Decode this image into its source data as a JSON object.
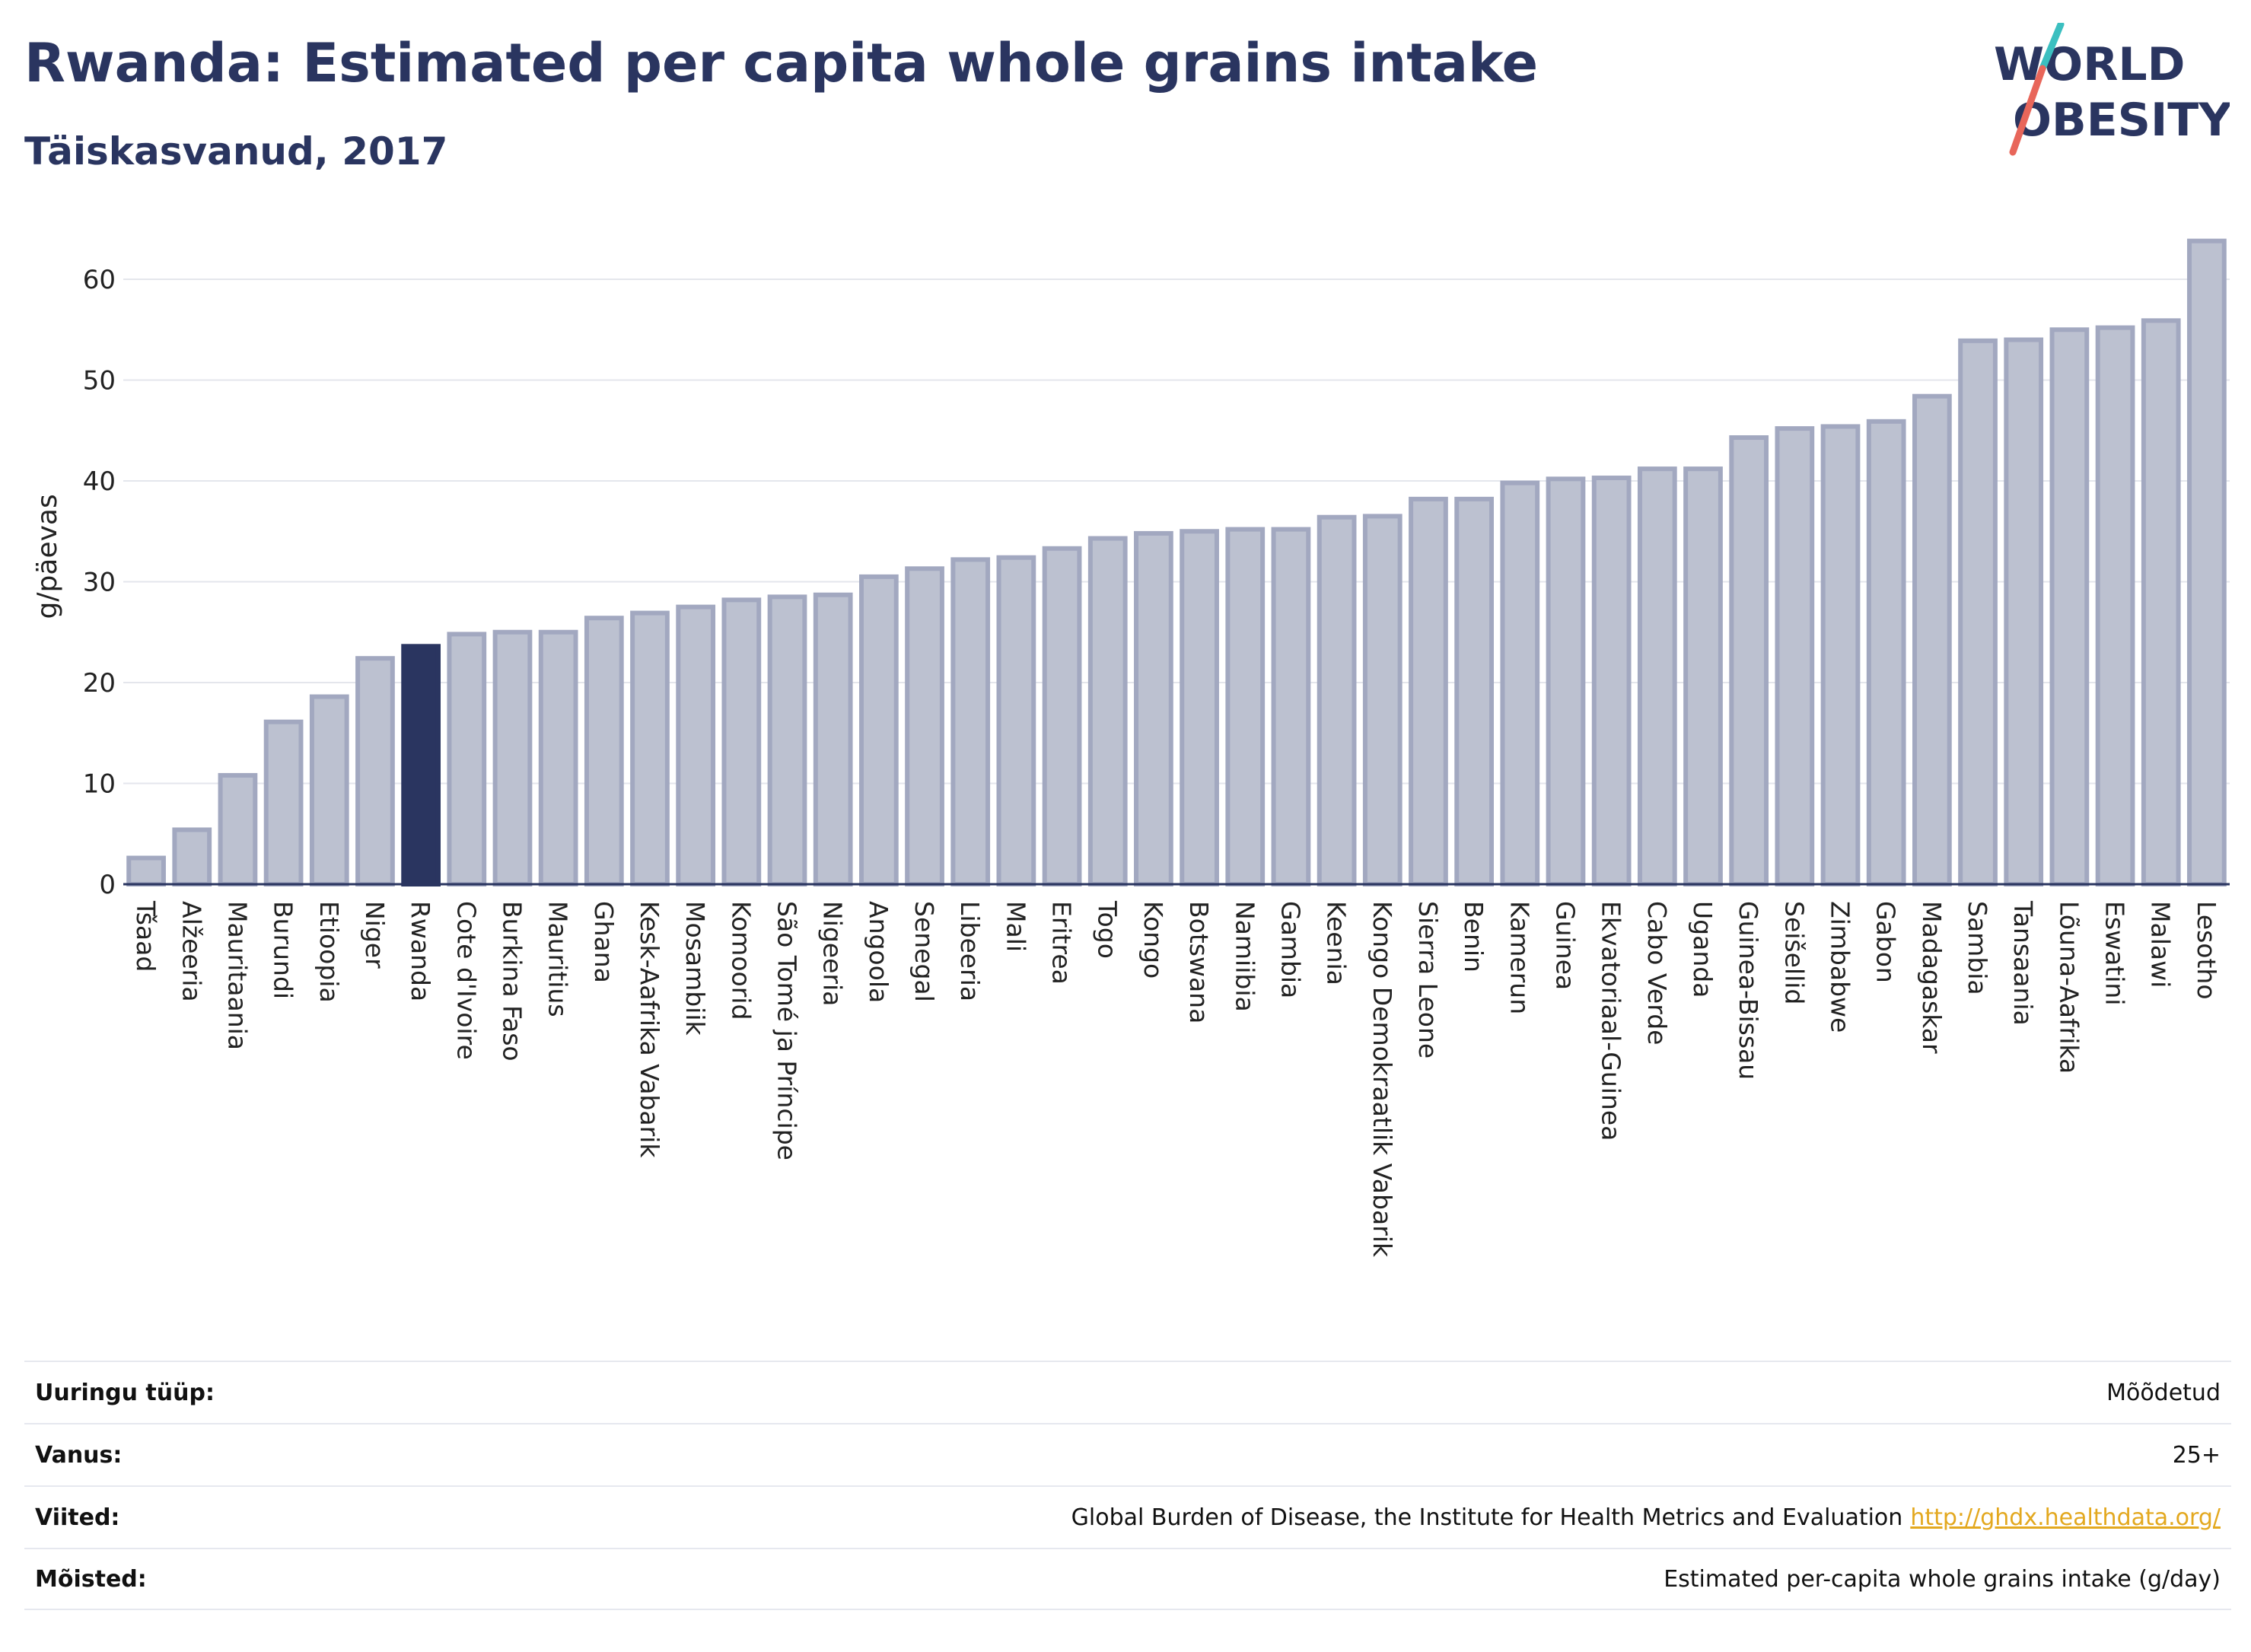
{
  "title": "Rwanda: Estimated per capita whole grains intake",
  "subtitle": "Täiskasvanud, 2017",
  "logo": {
    "line1": "WORLD",
    "line2": "OBESITY"
  },
  "colors": {
    "highlight": "#2a3560",
    "bar_fill": "#bcc1d0",
    "bar_stroke": "#a2a8c0",
    "accent_teal": "#3bbfc0",
    "accent_red": "#e8665a"
  },
  "chart_data": {
    "type": "bar",
    "ylabel": "g/päevas",
    "ylim": [
      0,
      65
    ],
    "yticks": [
      0,
      10,
      20,
      30,
      40,
      50,
      60
    ],
    "highlight": "Rwanda",
    "categories": [
      "Tšaad",
      "Alžeeria",
      "Mauritaania",
      "Burundi",
      "Etioopia",
      "Niger",
      "Rwanda",
      "Cote d'Ivoire",
      "Burkina Faso",
      "Mauritius",
      "Ghana",
      "Kesk-Aafrika Vabarik",
      "Mosambiik",
      "Komoorid",
      "São Tomé ja Príncipe",
      "Nigeeria",
      "Angoola",
      "Senegal",
      "Libeeria",
      "Mali",
      "Eritrea",
      "Togo",
      "Kongo",
      "Botswana",
      "Namiibia",
      "Gambia",
      "Keenia",
      "Kongo Demokraatlik Vabarik",
      "Sierra Leone",
      "Benin",
      "Kamerun",
      "Guinea",
      "Ekvatoriaal-Guinea",
      "Cabo Verde",
      "Uganda",
      "Guinea-Bissau",
      "Seišellid",
      "Zimbabwe",
      "Gabon",
      "Madagaskar",
      "Sambia",
      "Tansaania",
      "Lõuna-Aafrika",
      "Eswatini",
      "Malawi",
      "Lesotho"
    ],
    "values": [
      2.6,
      5.4,
      10.8,
      16.1,
      18.6,
      22.4,
      23.6,
      24.8,
      25.0,
      25.0,
      26.4,
      26.9,
      27.5,
      28.2,
      28.5,
      28.7,
      30.5,
      31.3,
      32.2,
      32.4,
      33.3,
      34.3,
      34.8,
      35.0,
      35.2,
      35.2,
      36.4,
      36.5,
      38.2,
      38.2,
      39.8,
      40.2,
      40.3,
      41.2,
      41.2,
      44.3,
      45.2,
      45.4,
      45.9,
      48.4,
      53.9,
      54.0,
      55.0,
      55.2,
      55.9,
      63.8
    ]
  },
  "info": [
    {
      "label": "Uuringu tüüp:",
      "value": "Mõõdetud"
    },
    {
      "label": "Vanus:",
      "value": "25+"
    },
    {
      "label": "Viited:",
      "value": "Global Burden of Disease, the Institute for Health Metrics and Evaluation",
      "link": "http://ghdx.healthdata.org/"
    },
    {
      "label": "Mõisted:",
      "value": "Estimated per-capita whole grains intake (g/day)"
    }
  ]
}
